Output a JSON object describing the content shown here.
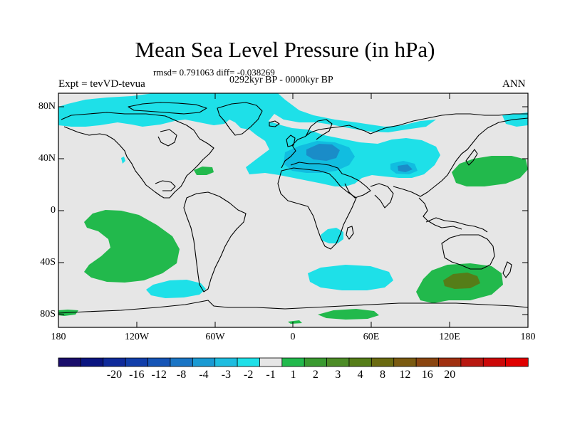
{
  "title": "Mean Sea Level Pressure (in hPa)",
  "stats": "rmsd= 0.791063 diff= -0.038269",
  "experiment": "Expt = tevVD-tevua",
  "period": "0292kyr BP - 0000kyr BP",
  "season": "ANN",
  "colors": {
    "background": "#e6e6e6",
    "neg_light": "#1ee0e8",
    "neg_mid": "#11bde0",
    "neg_dark": "#1a8cc8",
    "neg_darker": "#1060b8",
    "pos_light": "#22b94c",
    "pos_mid": "#4c8c26",
    "pos_dark": "#557d18"
  },
  "axes": {
    "y_ticks": [
      "80N",
      "40N",
      "0",
      "40S",
      "80S"
    ],
    "x_ticks": [
      "180",
      "120W",
      "60W",
      "0",
      "60E",
      "120E",
      "180"
    ]
  },
  "colorbar": {
    "labels": [
      "-20",
      "-16",
      "-12",
      "-8",
      "-4",
      "-3",
      "-2",
      "-1",
      "1",
      "2",
      "3",
      "4",
      "8",
      "12",
      "16",
      "20"
    ],
    "colors": [
      "#1a0d6b",
      "#0a1580",
      "#0f2a9a",
      "#113eaa",
      "#1554b6",
      "#1a75c5",
      "#1a9ad3",
      "#1ebde0",
      "#1ee0e8",
      "#e6e6e6",
      "#22b94c",
      "#3a9a30",
      "#4c8c26",
      "#557d18",
      "#6a6a10",
      "#7a5a10",
      "#8a4510",
      "#a03010",
      "#b81810",
      "#cc0808",
      "#e00000"
    ]
  }
}
